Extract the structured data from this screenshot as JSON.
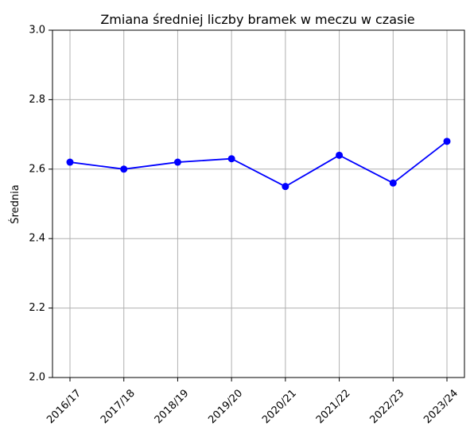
{
  "chart_data": {
    "type": "line",
    "title": "Zmiana średniej liczby bramek w meczu w czasie",
    "xlabel": "",
    "ylabel": "Średnia",
    "categories": [
      "2016/17",
      "2017/18",
      "2018/19",
      "2019/20",
      "2020/21",
      "2021/22",
      "2022/23",
      "2023/24"
    ],
    "series": [
      {
        "values": [
          2.62,
          2.6,
          2.62,
          2.63,
          2.55,
          2.64,
          2.56,
          2.68
        ],
        "color": "#0000ff",
        "marker": "circle"
      }
    ],
    "ylim": [
      2.0,
      3.0
    ],
    "yticks": [
      "2.0",
      "2.2",
      "2.4",
      "2.6",
      "2.8",
      "3.0"
    ],
    "grid": true,
    "grid_color": "#b0b0b0",
    "legend": "none"
  }
}
